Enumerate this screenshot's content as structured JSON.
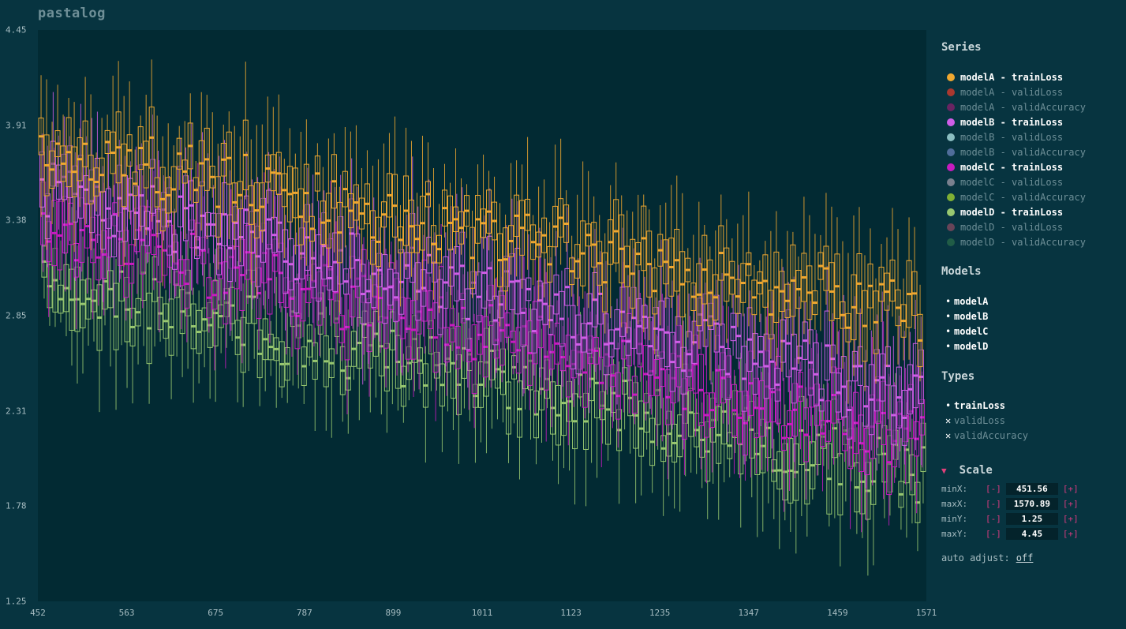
{
  "app": {
    "title": "pastalog"
  },
  "sidebar": {
    "series_heading": "Series",
    "series": [
      {
        "label": "modelA - trainLoss",
        "color": "#f0a830",
        "active": true
      },
      {
        "label": "modelA - validLoss",
        "color": "#e03a2a",
        "active": false
      },
      {
        "label": "modelA - validAccuracy",
        "color": "#8a1f6e",
        "active": false
      },
      {
        "label": "modelB - trainLoss",
        "color": "#d05ee8",
        "active": true
      },
      {
        "label": "modelB - validLoss",
        "color": "#b8ecec",
        "active": false
      },
      {
        "label": "modelB - validAccuracy",
        "color": "#6a80b8",
        "active": false
      },
      {
        "label": "modelC - trainLoss",
        "color": "#c81cc0",
        "active": true
      },
      {
        "label": "modelC - validLoss",
        "color": "#a09aa8",
        "active": false
      },
      {
        "label": "modelC - validAccuracy",
        "color": "#a8d830",
        "active": false
      },
      {
        "label": "modelD - trainLoss",
        "color": "#98c870",
        "active": true
      },
      {
        "label": "modelD - validLoss",
        "color": "#8a4a60",
        "active": false
      },
      {
        "label": "modelD - validAccuracy",
        "color": "#2a6a48",
        "active": false
      }
    ],
    "models_heading": "Models",
    "models": [
      {
        "label": "modelA",
        "on": true
      },
      {
        "label": "modelB",
        "on": true
      },
      {
        "label": "modelC",
        "on": true
      },
      {
        "label": "modelD",
        "on": true
      }
    ],
    "types_heading": "Types",
    "types": [
      {
        "label": "trainLoss",
        "on": true
      },
      {
        "label": "validLoss",
        "on": false
      },
      {
        "label": "validAccuracy",
        "on": false
      }
    ],
    "scale_heading": "Scale",
    "scale": [
      {
        "name": "minX:",
        "minus": "[-]",
        "value": "451.56",
        "plus": "[+]"
      },
      {
        "name": "maxX:",
        "minus": "[-]",
        "value": "1570.89",
        "plus": "[+]"
      },
      {
        "name": "minY:",
        "minus": "[-]",
        "value": "1.25",
        "plus": "[+]"
      },
      {
        "name": "maxY:",
        "minus": "[-]",
        "value": "4.45",
        "plus": "[+]"
      }
    ],
    "auto_adjust_label": "auto adjust:",
    "auto_adjust_value": "off"
  },
  "chart_data": {
    "type": "candlestick",
    "xlim": [
      451.56,
      1570.89
    ],
    "ylim": [
      1.25,
      4.45
    ],
    "x_ticks": [
      "452",
      "563",
      "675",
      "787",
      "899",
      "1011",
      "1123",
      "1235",
      "1347",
      "1459",
      "1571"
    ],
    "y_ticks": [
      "4.45",
      "3.91",
      "3.38",
      "2.85",
      "2.31",
      "1.78",
      "1.25"
    ],
    "series": [
      {
        "name": "modelA - trainLoss",
        "color": "#f0a830",
        "y_start": 3.8,
        "y_end": 2.85
      },
      {
        "name": "modelB - trainLoss",
        "color": "#d05ee8",
        "y_start": 3.55,
        "y_end": 2.4
      },
      {
        "name": "modelC - trainLoss",
        "color": "#c81cc0",
        "y_start": 3.35,
        "y_end": 2.15
      },
      {
        "name": "modelD - trainLoss",
        "color": "#98c870",
        "y_start": 3.05,
        "y_end": 1.95
      }
    ]
  }
}
